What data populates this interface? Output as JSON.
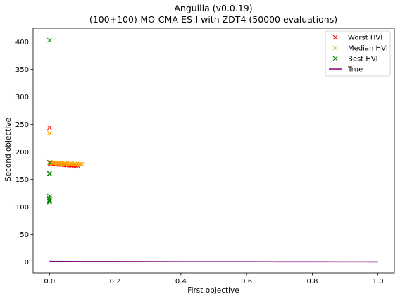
{
  "chart_data": {
    "type": "scatter",
    "title": "Anguilla (v0.0.19)",
    "subtitle": "(100+100)-MO-CMA-ES-I with ZDT4 (50000 evaluations)",
    "xlabel": "First objective",
    "ylabel": "Second objective",
    "xlim": [
      -0.05,
      1.05
    ],
    "ylim": [
      -20,
      425
    ],
    "xticks": [
      0.0,
      0.2,
      0.4,
      0.6,
      0.8,
      1.0
    ],
    "xtick_labels": [
      "0.0",
      "0.2",
      "0.4",
      "0.6",
      "0.8",
      "1.0"
    ],
    "yticks": [
      0,
      50,
      100,
      150,
      200,
      250,
      300,
      350,
      400
    ],
    "ytick_labels": [
      "0",
      "50",
      "100",
      "150",
      "200",
      "250",
      "300",
      "350",
      "400"
    ],
    "grid": false,
    "legend_position": "top-right",
    "series": [
      {
        "name": "Worst HVI",
        "marker": "x",
        "color": "#ff0000",
        "x": [
          0.0,
          0.0,
          0.002,
          0.005,
          0.01,
          0.015,
          0.02,
          0.025,
          0.03,
          0.035,
          0.04,
          0.045,
          0.05,
          0.055,
          0.06,
          0.065,
          0.07,
          0.075,
          0.08,
          0.085
        ],
        "y": [
          244,
          181,
          179,
          178.7,
          178.4,
          178.1,
          177.8,
          177.5,
          177.2,
          176.9,
          176.6,
          176.4,
          176.2,
          176.0,
          175.8,
          175.6,
          175.4,
          175.3,
          175.2,
          175.1
        ]
      },
      {
        "name": "Median HVI",
        "marker": "x",
        "color": "#ffa500",
        "x": [
          0.0,
          0.0,
          0.003,
          0.008,
          0.013,
          0.018,
          0.023,
          0.028,
          0.033,
          0.038,
          0.043,
          0.048,
          0.053,
          0.058,
          0.063,
          0.068,
          0.073,
          0.078,
          0.083,
          0.088,
          0.093,
          0.098
        ],
        "y": [
          234,
          181,
          180.5,
          180.2,
          179.9,
          179.6,
          179.4,
          179.2,
          179.0,
          178.8,
          178.6,
          178.5,
          178.3,
          178.2,
          178.1,
          178.0,
          177.9,
          177.8,
          177.7,
          177.6,
          177.5,
          177.4
        ]
      },
      {
        "name": "Best HVI",
        "marker": "x",
        "color": "#008000",
        "x": [
          0.0,
          0.0,
          0.0,
          0.0,
          0.0,
          0.0,
          0.0,
          0.0,
          0.0,
          0.0
        ],
        "y": [
          403,
          181,
          161,
          160,
          120,
          116,
          113,
          111,
          110,
          109
        ]
      },
      {
        "name": "True",
        "marker": "line",
        "color": "#800080",
        "x": [
          0.0,
          0.05,
          0.1,
          0.2,
          0.3,
          0.4,
          0.5,
          0.6,
          0.7,
          0.8,
          0.9,
          1.0
        ],
        "y": [
          1.0,
          0.78,
          0.68,
          0.55,
          0.45,
          0.37,
          0.29,
          0.23,
          0.16,
          0.11,
          0.05,
          0.0
        ]
      }
    ]
  }
}
